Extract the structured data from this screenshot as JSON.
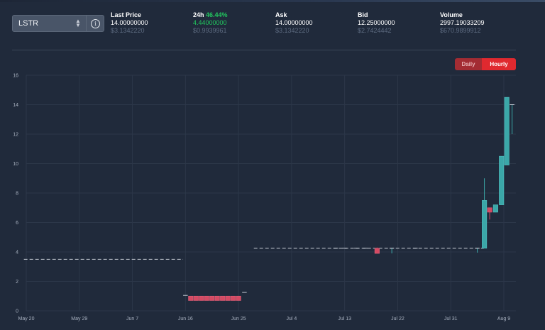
{
  "selector": {
    "value": "LSTR"
  },
  "stats": {
    "last_price": {
      "label": "Last Price",
      "value": "14.00000000",
      "usd": "$3.1342220"
    },
    "change": {
      "label": "24h",
      "percent": "46.44%",
      "value": "4.44000000",
      "usd": "$0.9939961"
    },
    "ask": {
      "label": "Ask",
      "value": "14.00000000",
      "usd": "$3.1342220"
    },
    "bid": {
      "label": "Bid",
      "value": "12.25000000",
      "usd": "$2.7424442"
    },
    "volume": {
      "label": "Volume",
      "value": "2997.19033209",
      "usd": "$670.9899912"
    }
  },
  "toggle": {
    "daily": "Daily",
    "hourly": "Hourly",
    "active": "Hourly"
  },
  "colors": {
    "up": "#3ba7a8",
    "down": "#d44a63",
    "grid": "#2c3749",
    "pct_up": "#22c55e"
  },
  "chart_data": {
    "type": "candlestick",
    "ylim": [
      0,
      16
    ],
    "y_ticks": [
      "0",
      "2",
      "4",
      "6",
      "8",
      "10",
      "12",
      "14",
      "16"
    ],
    "x_ticks": [
      {
        "label": "May 20",
        "day": 0
      },
      {
        "label": "May 29",
        "day": 9
      },
      {
        "label": "Jun 7",
        "day": 18
      },
      {
        "label": "Jun 16",
        "day": 27
      },
      {
        "label": "Jun 25",
        "day": 36
      },
      {
        "label": "Jul 4",
        "day": 45
      },
      {
        "label": "Jul 13",
        "day": 54
      },
      {
        "label": "Jul 22",
        "day": 63
      },
      {
        "label": "Jul 31",
        "day": 72
      },
      {
        "label": "Aug 9",
        "day": 81
      }
    ],
    "dashes": [
      {
        "day_start": -0.4,
        "day_end": 26.6,
        "price": 3.5
      },
      {
        "day_start": 38.6,
        "day_end": 77.6,
        "price": 4.25
      }
    ],
    "candles": [
      {
        "day": 27.0,
        "open": 1.05,
        "high": 1.05,
        "low": 1.05,
        "close": 1.05
      },
      {
        "day": 27.9,
        "open": 1.0,
        "high": 1.0,
        "low": 0.7,
        "close": 0.7
      },
      {
        "day": 28.8,
        "open": 1.0,
        "high": 1.0,
        "low": 0.7,
        "close": 0.7
      },
      {
        "day": 29.7,
        "open": 1.0,
        "high": 1.0,
        "low": 0.7,
        "close": 0.7
      },
      {
        "day": 30.6,
        "open": 1.0,
        "high": 1.0,
        "low": 0.7,
        "close": 0.7
      },
      {
        "day": 31.5,
        "open": 1.0,
        "high": 1.0,
        "low": 0.7,
        "close": 0.7
      },
      {
        "day": 32.4,
        "open": 1.0,
        "high": 1.0,
        "low": 0.7,
        "close": 0.7
      },
      {
        "day": 33.3,
        "open": 1.0,
        "high": 1.0,
        "low": 0.7,
        "close": 0.7
      },
      {
        "day": 34.2,
        "open": 1.0,
        "high": 1.0,
        "low": 0.7,
        "close": 0.7
      },
      {
        "day": 35.1,
        "open": 1.0,
        "high": 1.0,
        "low": 0.7,
        "close": 0.7
      },
      {
        "day": 36.0,
        "open": 1.0,
        "high": 1.0,
        "low": 0.7,
        "close": 0.7
      },
      {
        "day": 37.0,
        "open": 1.25,
        "high": 1.25,
        "low": 1.25,
        "close": 1.25
      },
      {
        "day": 52.5,
        "open": 4.25,
        "high": 4.25,
        "low": 4.25,
        "close": 4.25
      },
      {
        "day": 54.0,
        "open": 4.25,
        "high": 4.25,
        "low": 4.25,
        "close": 4.25
      },
      {
        "day": 56.0,
        "open": 4.25,
        "high": 4.25,
        "low": 4.25,
        "close": 4.25
      },
      {
        "day": 57.5,
        "open": 4.25,
        "high": 4.25,
        "low": 4.25,
        "close": 4.25
      },
      {
        "day": 59.5,
        "open": 4.25,
        "high": 4.3,
        "low": 3.9,
        "close": 3.9
      },
      {
        "day": 62.0,
        "open": 4.25,
        "high": 4.25,
        "low": 3.9,
        "close": 4.25
      },
      {
        "day": 66.0,
        "open": 4.25,
        "high": 4.25,
        "low": 4.25,
        "close": 4.25
      },
      {
        "day": 76.5,
        "open": 4.25,
        "high": 4.25,
        "low": 3.95,
        "close": 4.25
      },
      {
        "day": 77.7,
        "open": 4.25,
        "high": 9.0,
        "low": 4.25,
        "close": 7.5
      },
      {
        "day": 78.6,
        "open": 7.0,
        "high": 7.0,
        "low": 6.2,
        "close": 6.7
      },
      {
        "day": 79.6,
        "open": 6.7,
        "high": 7.2,
        "low": 6.7,
        "close": 7.2
      },
      {
        "day": 80.6,
        "open": 7.2,
        "high": 10.5,
        "low": 7.2,
        "close": 10.5
      },
      {
        "day": 81.5,
        "open": 9.9,
        "high": 14.5,
        "low": 9.9,
        "close": 14.5
      },
      {
        "day": 82.4,
        "open": 14.0,
        "high": 14.0,
        "low": 12.0,
        "close": 14.0
      }
    ]
  }
}
